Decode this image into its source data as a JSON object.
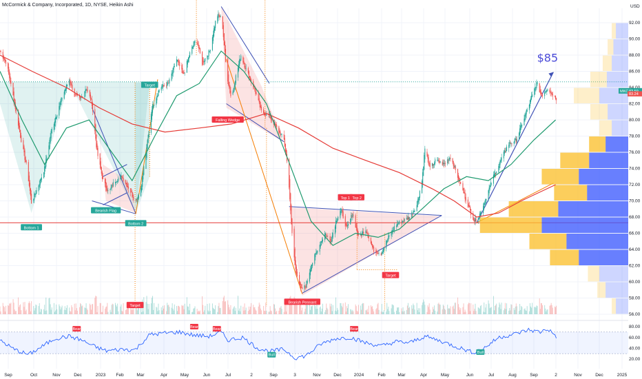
{
  "header": {
    "title": "McCormick & Company, Incorporated, 1D, NYSE, Heikin Ashi",
    "currency": "USD"
  },
  "colors": {
    "up": "#26a69a",
    "down": "#ef5350",
    "ma_red": "#e53935",
    "ma_green": "#1e9a6e",
    "pattern_blue": "#3f51b5",
    "orange": "#f57c00",
    "target_label": "#26a69a",
    "vp_up": "#fbc02d",
    "vp_down": "#3d5afe",
    "rsi_line": "#2962ff",
    "big_target": "#4a4ad8"
  },
  "chart_data": [
    {
      "type": "candlestick",
      "style": "Heikin Ashi",
      "y_axis_ticks": [
        "92.00",
        "90.00",
        "88.00",
        "86.00",
        "84.00",
        "82.00",
        "80.00",
        "78.00",
        "76.00",
        "74.00",
        "72.00",
        "70.00",
        "68.00",
        "66.00",
        "64.00",
        "62.00",
        "60.00",
        "58.00",
        "56.00"
      ],
      "ylim": [
        55.7,
        95.0
      ],
      "x_axis_ticks": [
        "Sep",
        "Oct",
        "Nov",
        "Dec",
        "2023",
        "Feb",
        "Mar",
        "Apr",
        "May",
        "Jun",
        "Jul",
        "2",
        "Sep",
        "3",
        "Nov",
        "Dec",
        "2024",
        "Feb",
        "Mar",
        "Apr",
        "May",
        "Jun",
        "Jul",
        "Aug",
        "Sep",
        "2",
        "Nov",
        "Dec",
        "2025"
      ],
      "x_domain": [
        "2022-09-01",
        "2024-12-31"
      ],
      "price_path": [
        {
          "date": "2022-09-01",
          "close": 88.5
        },
        {
          "date": "2022-09-10",
          "close": 87.0
        },
        {
          "date": "2022-09-20",
          "close": 82.5
        },
        {
          "date": "2022-10-01",
          "close": 77.0
        },
        {
          "date": "2022-10-08",
          "close": 74.0
        },
        {
          "date": "2022-10-14",
          "close": 69.8
        },
        {
          "date": "2022-10-22",
          "close": 71.5
        },
        {
          "date": "2022-11-01",
          "close": 74.0
        },
        {
          "date": "2022-11-10",
          "close": 78.5
        },
        {
          "date": "2022-11-20",
          "close": 81.5
        },
        {
          "date": "2022-11-28",
          "close": 83.5
        },
        {
          "date": "2022-12-05",
          "close": 85.0
        },
        {
          "date": "2022-12-12",
          "close": 83.0
        },
        {
          "date": "2022-12-20",
          "close": 82.5
        },
        {
          "date": "2022-12-28",
          "close": 84.0
        },
        {
          "date": "2023-01-05",
          "close": 82.0
        },
        {
          "date": "2023-01-12",
          "close": 76.0
        },
        {
          "date": "2023-01-20",
          "close": 72.5
        },
        {
          "date": "2023-01-28",
          "close": 71.0
        },
        {
          "date": "2023-02-05",
          "close": 72.5
        },
        {
          "date": "2023-02-15",
          "close": 73.0
        },
        {
          "date": "2023-02-25",
          "close": 71.5
        },
        {
          "date": "2023-03-05",
          "close": 70.0
        },
        {
          "date": "2023-03-12",
          "close": 71.0
        },
        {
          "date": "2023-03-20",
          "close": 76.0
        },
        {
          "date": "2023-03-28",
          "close": 81.5
        },
        {
          "date": "2023-04-08",
          "close": 84.0
        },
        {
          "date": "2023-04-20",
          "close": 84.5
        },
        {
          "date": "2023-05-01",
          "close": 87.5
        },
        {
          "date": "2023-05-10",
          "close": 85.5
        },
        {
          "date": "2023-05-20",
          "close": 88.5
        },
        {
          "date": "2023-05-28",
          "close": 90.0
        },
        {
          "date": "2023-06-05",
          "close": 87.0
        },
        {
          "date": "2023-06-15",
          "close": 88.5
        },
        {
          "date": "2023-06-25",
          "close": 93.0
        },
        {
          "date": "2023-07-02",
          "close": 92.5
        },
        {
          "date": "2023-07-08",
          "close": 86.0
        },
        {
          "date": "2023-07-15",
          "close": 82.5
        },
        {
          "date": "2023-07-20",
          "close": 85.0
        },
        {
          "date": "2023-07-28",
          "close": 88.0
        },
        {
          "date": "2023-08-05",
          "close": 86.0
        },
        {
          "date": "2023-08-15",
          "close": 84.0
        },
        {
          "date": "2023-08-25",
          "close": 81.0
        },
        {
          "date": "2023-09-05",
          "close": 80.5
        },
        {
          "date": "2023-09-15",
          "close": 79.0
        },
        {
          "date": "2023-09-25",
          "close": 77.5
        },
        {
          "date": "2023-10-01",
          "close": 73.5
        },
        {
          "date": "2023-10-05",
          "close": 67.0
        },
        {
          "date": "2023-10-10",
          "close": 62.0
        },
        {
          "date": "2023-10-18",
          "close": 59.0
        },
        {
          "date": "2023-10-25",
          "close": 59.5
        },
        {
          "date": "2023-11-01",
          "close": 62.0
        },
        {
          "date": "2023-11-10",
          "close": 64.0
        },
        {
          "date": "2023-11-20",
          "close": 66.0
        },
        {
          "date": "2023-11-28",
          "close": 65.0
        },
        {
          "date": "2023-12-05",
          "close": 67.5
        },
        {
          "date": "2023-12-12",
          "close": 69.0
        },
        {
          "date": "2023-12-20",
          "close": 66.5
        },
        {
          "date": "2023-12-28",
          "close": 68.5
        },
        {
          "date": "2024-01-05",
          "close": 65.5
        },
        {
          "date": "2024-01-15",
          "close": 66.5
        },
        {
          "date": "2024-01-25",
          "close": 64.0
        },
        {
          "date": "2024-02-05",
          "close": 63.5
        },
        {
          "date": "2024-02-15",
          "close": 65.5
        },
        {
          "date": "2024-02-25",
          "close": 67.0
        },
        {
          "date": "2024-03-05",
          "close": 67.5
        },
        {
          "date": "2024-03-15",
          "close": 68.0
        },
        {
          "date": "2024-03-25",
          "close": 69.5
        },
        {
          "date": "2024-04-01",
          "close": 72.5
        },
        {
          "date": "2024-04-05",
          "close": 76.5
        },
        {
          "date": "2024-04-12",
          "close": 74.0
        },
        {
          "date": "2024-04-20",
          "close": 75.0
        },
        {
          "date": "2024-05-01",
          "close": 74.5
        },
        {
          "date": "2024-05-10",
          "close": 75.5
        },
        {
          "date": "2024-05-20",
          "close": 73.0
        },
        {
          "date": "2024-05-28",
          "close": 71.0
        },
        {
          "date": "2024-06-05",
          "close": 69.0
        },
        {
          "date": "2024-06-12",
          "close": 67.5
        },
        {
          "date": "2024-06-20",
          "close": 68.5
        },
        {
          "date": "2024-06-28",
          "close": 70.5
        },
        {
          "date": "2024-07-08",
          "close": 73.0
        },
        {
          "date": "2024-07-18",
          "close": 75.0
        },
        {
          "date": "2024-07-28",
          "close": 77.0
        },
        {
          "date": "2024-08-08",
          "close": 77.5
        },
        {
          "date": "2024-08-18",
          "close": 80.0
        },
        {
          "date": "2024-08-28",
          "close": 82.5
        },
        {
          "date": "2024-09-05",
          "close": 84.5
        },
        {
          "date": "2024-09-12",
          "close": 83.0
        },
        {
          "date": "2024-09-20",
          "close": 84.0
        },
        {
          "date": "2024-09-28",
          "close": 83.0
        },
        {
          "date": "2024-10-02",
          "close": 82.7
        }
      ],
      "ma_red_path": [
        {
          "date": "2022-09-01",
          "value": 88.0
        },
        {
          "date": "2022-10-15",
          "value": 86.0
        },
        {
          "date": "2022-12-01",
          "value": 84.0
        },
        {
          "date": "2023-01-15",
          "value": 81.5
        },
        {
          "date": "2023-03-01",
          "value": 79.5
        },
        {
          "date": "2023-04-15",
          "value": 78.5
        },
        {
          "date": "2023-06-01",
          "value": 79.0
        },
        {
          "date": "2023-07-15",
          "value": 79.5
        },
        {
          "date": "2023-09-01",
          "value": 80.8
        },
        {
          "date": "2023-10-15",
          "value": 79.0
        },
        {
          "date": "2023-12-01",
          "value": 76.5
        },
        {
          "date": "2024-01-15",
          "value": 75.0
        },
        {
          "date": "2024-03-01",
          "value": 73.5
        },
        {
          "date": "2024-04-15",
          "value": 71.5
        },
        {
          "date": "2024-05-15",
          "value": 70.0
        },
        {
          "date": "2024-06-15",
          "value": 68.0
        },
        {
          "date": "2024-07-15",
          "value": 68.5
        },
        {
          "date": "2024-08-15",
          "value": 70.0
        },
        {
          "date": "2024-10-01",
          "value": 72.0
        }
      ],
      "ma_green_path": [
        {
          "date": "2022-09-01",
          "value": 86.0
        },
        {
          "date": "2022-10-01",
          "value": 80.0
        },
        {
          "date": "2022-11-01",
          "value": 74.5
        },
        {
          "date": "2022-12-01",
          "value": 79.0
        },
        {
          "date": "2023-01-01",
          "value": 80.0
        },
        {
          "date": "2023-02-01",
          "value": 76.0
        },
        {
          "date": "2023-03-01",
          "value": 72.5
        },
        {
          "date": "2023-04-01",
          "value": 78.0
        },
        {
          "date": "2023-05-01",
          "value": 83.0
        },
        {
          "date": "2023-06-01",
          "value": 84.5
        },
        {
          "date": "2023-07-01",
          "value": 88.5
        },
        {
          "date": "2023-08-01",
          "value": 86.0
        },
        {
          "date": "2023-09-01",
          "value": 82.0
        },
        {
          "date": "2023-10-01",
          "value": 75.0
        },
        {
          "date": "2023-11-01",
          "value": 67.5
        },
        {
          "date": "2023-12-01",
          "value": 64.5
        },
        {
          "date": "2024-01-01",
          "value": 66.0
        },
        {
          "date": "2024-02-01",
          "value": 65.5
        },
        {
          "date": "2024-03-01",
          "value": 66.5
        },
        {
          "date": "2024-04-01",
          "value": 69.0
        },
        {
          "date": "2024-05-01",
          "value": 71.5
        },
        {
          "date": "2024-06-01",
          "value": 73.0
        },
        {
          "date": "2024-07-01",
          "value": 72.5
        },
        {
          "date": "2024-08-01",
          "value": 74.5
        },
        {
          "date": "2024-09-01",
          "value": 77.5
        },
        {
          "date": "2024-10-01",
          "value": 80.0
        }
      ],
      "horizontal_lines": [
        {
          "price": 67.3,
          "color": "#e53935"
        },
        {
          "price": 84.7,
          "color": "#26a69a",
          "style": "dotted"
        }
      ],
      "pattern_labels": [
        {
          "text": "Bottom 1",
          "date": "2022-10-14",
          "price": 66.7
        },
        {
          "text": "Bearish Flag",
          "date": "2023-01-24",
          "price": 68.8
        },
        {
          "text": "Bottom 2",
          "date": "2023-03-06",
          "price": 67.2
        },
        {
          "text": "Target",
          "date": "2023-03-25",
          "price": 84.3
        },
        {
          "text": "Target",
          "date": "2023-03-05",
          "price": 57.1
        },
        {
          "text": "Falling Wedge",
          "date": "2023-07-10",
          "price": 80.0
        },
        {
          "text": "Bearish Pennant",
          "date": "2023-10-20",
          "price": 57.5
        },
        {
          "text": "Top 1",
          "date": "2023-12-18",
          "price": 70.4
        },
        {
          "text": "Top 2",
          "date": "2024-01-03",
          "price": 70.4
        },
        {
          "text": "Target",
          "date": "2024-02-18",
          "price": 60.8
        }
      ],
      "price_labels": {
        "last_price": "83.59",
        "prev_price": "83.24",
        "ticker": "MKC"
      },
      "projection_label": "$85",
      "volume_profile": [
        {
          "price": 91.0,
          "up": 10,
          "down": 30
        },
        {
          "price": 89.0,
          "up": 14,
          "down": 36
        },
        {
          "price": 87.0,
          "up": 22,
          "down": 40
        },
        {
          "price": 85.0,
          "up": 40,
          "down": 52
        },
        {
          "price": 83.0,
          "up": 62,
          "down": 70
        },
        {
          "price": 81.0,
          "up": 42,
          "down": 50
        },
        {
          "price": 79.0,
          "up": 30,
          "down": 40
        },
        {
          "price": 77.0,
          "up": 40,
          "down": 55
        },
        {
          "price": 75.0,
          "up": 70,
          "down": 95
        },
        {
          "price": 73.0,
          "up": 90,
          "down": 120
        },
        {
          "price": 71.0,
          "up": 80,
          "down": 100
        },
        {
          "price": 69.0,
          "up": 120,
          "down": 170
        },
        {
          "price": 67.0,
          "up": 150,
          "down": 210
        },
        {
          "price": 65.0,
          "up": 90,
          "down": 150
        },
        {
          "price": 63.0,
          "up": 70,
          "down": 120
        },
        {
          "price": 61.0,
          "up": 28,
          "down": 70
        },
        {
          "price": 59.0,
          "up": 20,
          "down": 55
        },
        {
          "price": 57.0,
          "up": 10,
          "down": 30
        }
      ]
    },
    {
      "type": "line",
      "name": "RSI",
      "y_axis_ticks": [
        "80.00",
        "60.00",
        "40.00",
        "20.00"
      ],
      "ylim": [
        10,
        90
      ],
      "band": [
        30,
        70
      ],
      "rsi_path": [
        {
          "date": "2022-09-01",
          "value": 55
        },
        {
          "date": "2022-09-20",
          "value": 38
        },
        {
          "date": "2022-10-10",
          "value": 28
        },
        {
          "date": "2022-10-25",
          "value": 40
        },
        {
          "date": "2022-11-15",
          "value": 58
        },
        {
          "date": "2022-12-05",
          "value": 62
        },
        {
          "date": "2022-12-20",
          "value": 56
        },
        {
          "date": "2023-01-10",
          "value": 42
        },
        {
          "date": "2023-01-25",
          "value": 35
        },
        {
          "date": "2023-02-15",
          "value": 38
        },
        {
          "date": "2023-03-05",
          "value": 37
        },
        {
          "date": "2023-03-25",
          "value": 65
        },
        {
          "date": "2023-04-15",
          "value": 68
        },
        {
          "date": "2023-05-05",
          "value": 70
        },
        {
          "date": "2023-05-25",
          "value": 64
        },
        {
          "date": "2023-06-15",
          "value": 62
        },
        {
          "date": "2023-07-01",
          "value": 70
        },
        {
          "date": "2023-07-10",
          "value": 55
        },
        {
          "date": "2023-07-30",
          "value": 60
        },
        {
          "date": "2023-08-20",
          "value": 40
        },
        {
          "date": "2023-09-05",
          "value": 34
        },
        {
          "date": "2023-09-25",
          "value": 38
        },
        {
          "date": "2023-10-10",
          "value": 22
        },
        {
          "date": "2023-10-25",
          "value": 26
        },
        {
          "date": "2023-11-15",
          "value": 48
        },
        {
          "date": "2023-12-05",
          "value": 58
        },
        {
          "date": "2023-12-25",
          "value": 60
        },
        {
          "date": "2024-01-15",
          "value": 50
        },
        {
          "date": "2024-02-05",
          "value": 44
        },
        {
          "date": "2024-02-25",
          "value": 52
        },
        {
          "date": "2024-03-15",
          "value": 50
        },
        {
          "date": "2024-04-05",
          "value": 62
        },
        {
          "date": "2024-04-25",
          "value": 54
        },
        {
          "date": "2024-05-20",
          "value": 42
        },
        {
          "date": "2024-06-10",
          "value": 32
        },
        {
          "date": "2024-06-25",
          "value": 40
        },
        {
          "date": "2024-07-15",
          "value": 60
        },
        {
          "date": "2024-08-05",
          "value": 66
        },
        {
          "date": "2024-08-25",
          "value": 74
        },
        {
          "date": "2024-09-10",
          "value": 70
        },
        {
          "date": "2024-09-20",
          "value": 76
        },
        {
          "date": "2024-10-02",
          "value": 62
        }
      ],
      "labels": [
        {
          "text": "Bear",
          "date": "2022-12-15",
          "value": 76
        },
        {
          "text": "Bear",
          "date": "2023-05-25",
          "value": 80
        },
        {
          "text": "Bear",
          "date": "2023-06-25",
          "value": 76
        },
        {
          "text": "Bull",
          "date": "2023-09-08",
          "value": 28
        },
        {
          "text": "Bear",
          "date": "2023-12-30",
          "value": 76
        },
        {
          "text": "Bull",
          "date": "2024-06-20",
          "value": 33
        }
      ]
    }
  ]
}
